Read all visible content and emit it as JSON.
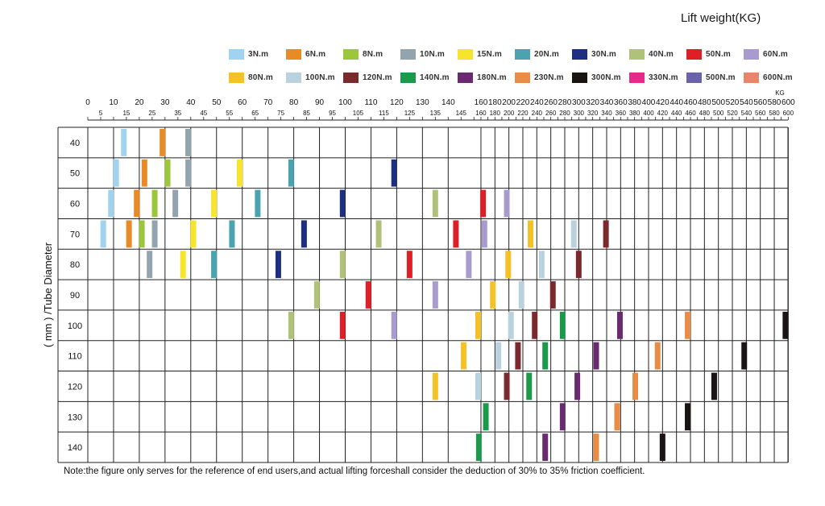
{
  "chart_data": {
    "type": "bar",
    "title": "",
    "xlabel": "Lift weight(KG)",
    "x_unit": "KG",
    "ylabel": "( mm ) /Tube Diameter",
    "grid": true,
    "legend_position": "top",
    "categories": [
      "40",
      "50",
      "60",
      "70",
      "80",
      "90",
      "100",
      "110",
      "120",
      "130",
      "140"
    ],
    "x_tick_labels_top": [
      "0",
      "10",
      "20",
      "30",
      "40",
      "50",
      "60",
      "70",
      "80",
      "90",
      "100",
      "110",
      "120",
      "130",
      "140",
      "160",
      "180",
      "200",
      "220",
      "240",
      "260",
      "280",
      "300",
      "320",
      "340",
      "360",
      "380",
      "400",
      "420",
      "440",
      "460",
      "480",
      "500",
      "520",
      "540",
      "560",
      "580",
      "600"
    ],
    "x_tick_labels_bottom": [
      "5",
      "15",
      "25",
      "35",
      "45",
      "55",
      "65",
      "75",
      "85",
      "95",
      "105",
      "115",
      "125",
      "135",
      "145",
      "160",
      "180",
      "200",
      "220",
      "240",
      "260",
      "280",
      "300",
      "320",
      "340",
      "360",
      "380",
      "400",
      "420",
      "440",
      "460",
      "480",
      "500",
      "520",
      "540",
      "560",
      "580",
      "600"
    ],
    "series": [
      {
        "name": "3N.m",
        "color": "#9fd3ee",
        "values": [
          14,
          11,
          9,
          6,
          null,
          null,
          null,
          null,
          null,
          null,
          null
        ]
      },
      {
        "name": "6N.m",
        "color": "#e88a26",
        "values": [
          29,
          22,
          19,
          16,
          null,
          null,
          null,
          null,
          null,
          null,
          null
        ]
      },
      {
        "name": "8N.m",
        "color": "#9cc63b",
        "values": [
          39,
          31,
          26,
          21,
          null,
          null,
          null,
          null,
          null,
          null,
          null
        ]
      },
      {
        "name": "10N.m",
        "color": "#93a4ae",
        "values": [
          39,
          39,
          34,
          26,
          24,
          null,
          null,
          null,
          null,
          null,
          null
        ]
      },
      {
        "name": "15N.m",
        "color": "#f6e52a",
        "values": [
          null,
          59,
          49,
          41,
          37,
          null,
          null,
          null,
          null,
          null,
          null
        ]
      },
      {
        "name": "20N.m",
        "color": "#4aa3ae",
        "values": [
          null,
          79,
          66,
          56,
          49,
          null,
          null,
          null,
          null,
          null,
          null
        ]
      },
      {
        "name": "30N.m",
        "color": "#1e2f7f",
        "values": [
          null,
          119,
          99,
          84,
          74,
          null,
          null,
          null,
          null,
          null,
          null
        ]
      },
      {
        "name": "40N.m",
        "color": "#b0c27a",
        "values": [
          null,
          null,
          135,
          113,
          99,
          89,
          79,
          null,
          null,
          null,
          null
        ]
      },
      {
        "name": "50N.m",
        "color": "#dd2027",
        "values": [
          null,
          null,
          163,
          143,
          125,
          109,
          99,
          null,
          null,
          null,
          null
        ]
      },
      {
        "name": "60N.m",
        "color": "#a89ccf",
        "values": [
          null,
          null,
          197,
          165,
          148,
          135,
          119,
          null,
          null,
          null,
          null
        ]
      },
      {
        "name": "80N.m",
        "color": "#f4c226",
        "values": [
          null,
          null,
          null,
          231,
          199,
          177,
          156,
          146,
          135,
          null,
          null
        ]
      },
      {
        "name": "100N.m",
        "color": "#b9d2de",
        "values": [
          null,
          null,
          null,
          293,
          247,
          218,
          203,
          185,
          156,
          null,
          null
        ]
      },
      {
        "name": "120N.m",
        "color": "#7a2a2e",
        "values": [
          null,
          null,
          null,
          339,
          300,
          263,
          237,
          213,
          197,
          null,
          null
        ]
      },
      {
        "name": "140N.m",
        "color": "#1a9a4a",
        "values": [
          null,
          null,
          null,
          null,
          null,
          null,
          277,
          252,
          229,
          167,
          157
        ]
      },
      {
        "name": "180N.m",
        "color": "#6a2a6f",
        "values": [
          null,
          null,
          null,
          null,
          null,
          null,
          359,
          325,
          298,
          277,
          252
        ]
      },
      {
        "name": "230N.m",
        "color": "#e88c46",
        "values": [
          null,
          null,
          null,
          null,
          null,
          null,
          456,
          413,
          381,
          355,
          325
        ]
      },
      {
        "name": "300N.m",
        "color": "#1a1414",
        "values": [
          null,
          null,
          null,
          null,
          null,
          null,
          596,
          537,
          494,
          456,
          420
        ]
      },
      {
        "name": "330N.m",
        "color": "#e62a8a",
        "values": [
          null,
          null,
          null,
          null,
          null,
          null,
          null,
          null,
          null,
          null,
          null
        ]
      },
      {
        "name": "500N.m",
        "color": "#6b63aa",
        "values": [
          null,
          null,
          null,
          null,
          null,
          null,
          null,
          null,
          null,
          null,
          null
        ]
      },
      {
        "name": "600N.m",
        "color": "#e8866a",
        "values": [
          null,
          null,
          null,
          null,
          null,
          null,
          null,
          null,
          null,
          null,
          null
        ]
      }
    ],
    "note": "Note:the figure only serves for the reference of end users,and actual lifting forceshall consider the deduction of 30% to 35% friction coefficient."
  }
}
